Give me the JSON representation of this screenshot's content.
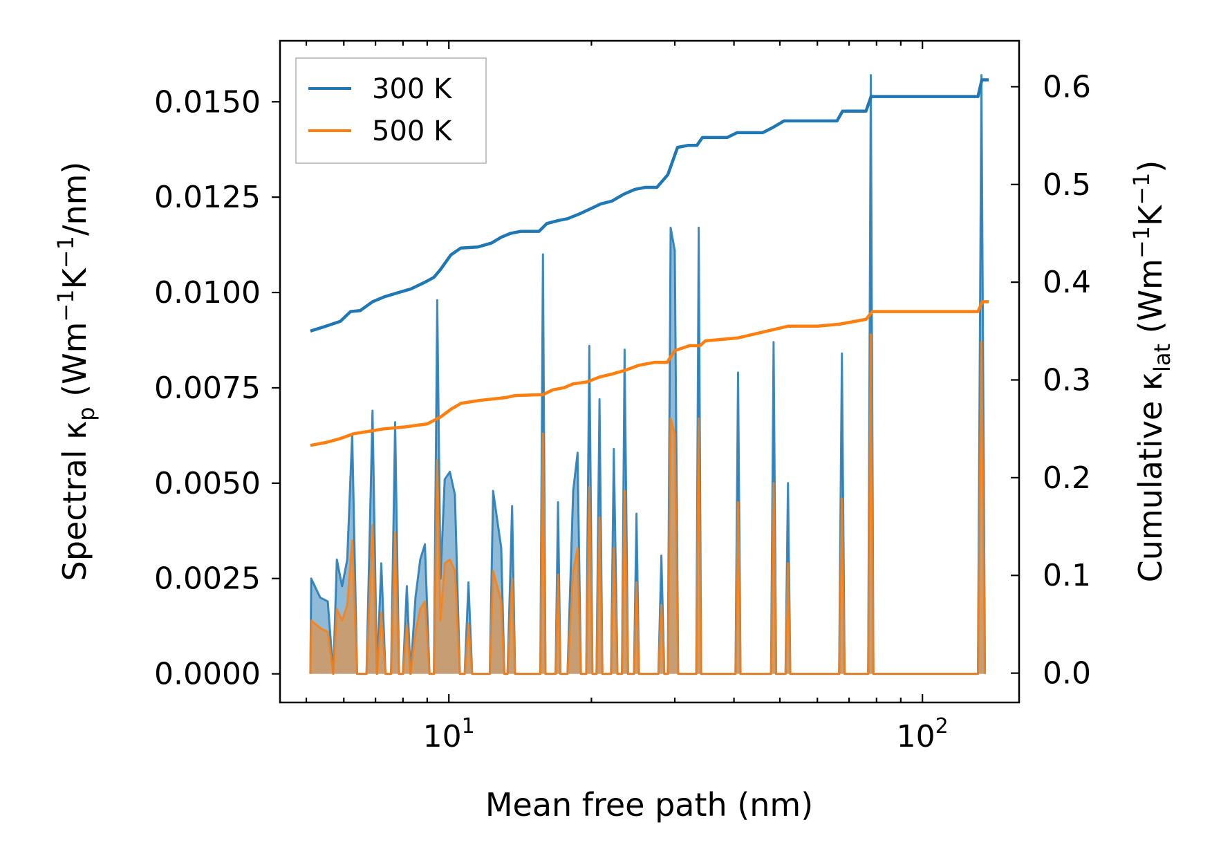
{
  "chart_data": {
    "type": "line",
    "xscale": "log",
    "xlabel": "Mean free path (nm)",
    "ylabel_left": {
      "pre": "Spectral κ",
      "sub": "p",
      "post": " (Wm",
      "sup1": "−1",
      "mid": "K",
      "sup2": "−1",
      "tail": "/nm)"
    },
    "ylabel_right": {
      "pre": "Cumulative κ",
      "sub": "lat",
      "post": " (Wm",
      "sup1": "−1",
      "mid": "K",
      "sup2": "−1",
      "tail": ")"
    },
    "xlim": [
      4.4,
      160
    ],
    "ylim_left": [
      -0.00075,
      0.0166
    ],
    "ylim_right": [
      -0.03,
      0.647
    ],
    "xticks": [
      {
        "value": 10,
        "base": "10",
        "exp": "1"
      },
      {
        "value": 100,
        "base": "10",
        "exp": "2"
      }
    ],
    "yticks_left": [
      {
        "value": 0.0,
        "label": "0.0000"
      },
      {
        "value": 0.0025,
        "label": "0.0025"
      },
      {
        "value": 0.005,
        "label": "0.0050"
      },
      {
        "value": 0.0075,
        "label": "0.0075"
      },
      {
        "value": 0.01,
        "label": "0.0100"
      },
      {
        "value": 0.0125,
        "label": "0.0125"
      },
      {
        "value": 0.015,
        "label": "0.0150"
      }
    ],
    "yticks_right": [
      {
        "value": 0.0,
        "label": "0.0"
      },
      {
        "value": 0.1,
        "label": "0.1"
      },
      {
        "value": 0.2,
        "label": "0.2"
      },
      {
        "value": 0.3,
        "label": "0.3"
      },
      {
        "value": 0.4,
        "label": "0.4"
      },
      {
        "value": 0.5,
        "label": "0.5"
      },
      {
        "value": 0.6,
        "label": "0.6"
      }
    ],
    "legend": {
      "position": "top-left",
      "entries": [
        "300 K",
        "500 K"
      ]
    },
    "colors": {
      "300 K": "#1f77b4",
      "500 K": "#ff7f0e"
    },
    "spectral_series": [
      {
        "name": "300 K",
        "axis": "left",
        "points": [
          [
            5.1,
            0.0
          ],
          [
            5.12,
            0.0025
          ],
          [
            5.35,
            0.002
          ],
          [
            5.55,
            0.0019
          ],
          [
            5.7,
            0.0
          ],
          [
            5.8,
            0.003
          ],
          [
            5.95,
            0.0023
          ],
          [
            6.1,
            0.003
          ],
          [
            6.25,
            0.0063
          ],
          [
            6.4,
            0.0
          ],
          [
            6.7,
            0.0
          ],
          [
            6.9,
            0.0069
          ],
          [
            7.05,
            0.0
          ],
          [
            7.2,
            0.0029
          ],
          [
            7.35,
            0.0
          ],
          [
            7.55,
            0.0
          ],
          [
            7.7,
            0.0066
          ],
          [
            7.85,
            0.0
          ],
          [
            8.0,
            0.0
          ],
          [
            8.15,
            0.0023
          ],
          [
            8.3,
            0.0
          ],
          [
            8.5,
            0.002
          ],
          [
            8.7,
            0.003
          ],
          [
            8.9,
            0.0034
          ],
          [
            9.1,
            0.0
          ],
          [
            9.3,
            0.0
          ],
          [
            9.45,
            0.0098
          ],
          [
            9.6,
            0.0025
          ],
          [
            9.8,
            0.0051
          ],
          [
            10.05,
            0.0053
          ],
          [
            10.3,
            0.0047
          ],
          [
            10.55,
            0.0
          ],
          [
            10.8,
            0.0
          ],
          [
            11.0,
            0.0024
          ],
          [
            11.2,
            0.0
          ],
          [
            12.2,
            0.0
          ],
          [
            12.4,
            0.0048
          ],
          [
            12.9,
            0.0033
          ],
          [
            13.1,
            0.0
          ],
          [
            13.3,
            0.0
          ],
          [
            13.6,
            0.0044
          ],
          [
            13.8,
            0.0
          ],
          [
            15.6,
            0.0
          ],
          [
            15.8,
            0.011
          ],
          [
            16.0,
            0.0
          ],
          [
            16.8,
            0.0
          ],
          [
            17.0,
            0.0045
          ],
          [
            17.2,
            0.0
          ],
          [
            17.8,
            0.0
          ],
          [
            18.3,
            0.0048
          ],
          [
            18.7,
            0.0058
          ],
          [
            19.0,
            0.0
          ],
          [
            19.5,
            0.0
          ],
          [
            19.8,
            0.0086
          ],
          [
            20.1,
            0.0
          ],
          [
            20.5,
            0.0
          ],
          [
            20.8,
            0.0072
          ],
          [
            21.1,
            0.0
          ],
          [
            22.0,
            0.0
          ],
          [
            22.3,
            0.0059
          ],
          [
            22.7,
            0.0
          ],
          [
            23.2,
            0.0
          ],
          [
            23.5,
            0.0085
          ],
          [
            23.9,
            0.0
          ],
          [
            24.6,
            0.0
          ],
          [
            24.9,
            0.0042
          ],
          [
            25.2,
            0.0
          ],
          [
            27.7,
            0.0
          ],
          [
            28.1,
            0.0031
          ],
          [
            28.5,
            0.0
          ],
          [
            29.0,
            0.0
          ],
          [
            29.4,
            0.0117
          ],
          [
            30.0,
            0.0111
          ],
          [
            30.5,
            0.0
          ],
          [
            33.3,
            0.0
          ],
          [
            33.7,
            0.0117
          ],
          [
            34.1,
            0.0
          ],
          [
            40.3,
            0.0
          ],
          [
            40.8,
            0.0079
          ],
          [
            41.3,
            0.0
          ],
          [
            47.9,
            0.0
          ],
          [
            48.5,
            0.0087
          ],
          [
            49.1,
            0.0
          ],
          [
            51.4,
            0.0
          ],
          [
            52.0,
            0.005
          ],
          [
            52.6,
            0.0
          ],
          [
            66.7,
            0.0
          ],
          [
            67.6,
            0.0084
          ],
          [
            68.5,
            0.0
          ],
          [
            76.8,
            0.0
          ],
          [
            77.8,
            0.0157
          ],
          [
            78.8,
            0.0
          ],
          [
            131.0,
            0.0
          ],
          [
            133.2,
            0.0157
          ],
          [
            135.5,
            0.0
          ]
        ]
      },
      {
        "name": "500 K",
        "axis": "left",
        "points": [
          [
            5.1,
            0.0
          ],
          [
            5.12,
            0.0014
          ],
          [
            5.35,
            0.0012
          ],
          [
            5.55,
            0.0011
          ],
          [
            5.7,
            0.0
          ],
          [
            5.8,
            0.0017
          ],
          [
            5.95,
            0.0014
          ],
          [
            6.1,
            0.0018
          ],
          [
            6.25,
            0.0035
          ],
          [
            6.4,
            0.0
          ],
          [
            6.7,
            0.0
          ],
          [
            6.9,
            0.0039
          ],
          [
            7.05,
            0.0
          ],
          [
            7.2,
            0.0016
          ],
          [
            7.35,
            0.0
          ],
          [
            7.55,
            0.0
          ],
          [
            7.7,
            0.0037
          ],
          [
            7.85,
            0.0
          ],
          [
            8.0,
            0.0
          ],
          [
            8.15,
            0.0013
          ],
          [
            8.3,
            0.0
          ],
          [
            8.5,
            0.0011
          ],
          [
            8.7,
            0.0017
          ],
          [
            8.9,
            0.0019
          ],
          [
            9.1,
            0.0
          ],
          [
            9.3,
            0.0
          ],
          [
            9.45,
            0.0056
          ],
          [
            9.6,
            0.0014
          ],
          [
            9.8,
            0.0029
          ],
          [
            10.05,
            0.003
          ],
          [
            10.3,
            0.0027
          ],
          [
            10.55,
            0.0
          ],
          [
            10.8,
            0.0
          ],
          [
            11.0,
            0.0013
          ],
          [
            11.2,
            0.0
          ],
          [
            12.2,
            0.0
          ],
          [
            12.4,
            0.0027
          ],
          [
            12.9,
            0.0019
          ],
          [
            13.1,
            0.0
          ],
          [
            13.3,
            0.0
          ],
          [
            13.6,
            0.0025
          ],
          [
            13.8,
            0.0
          ],
          [
            15.6,
            0.0
          ],
          [
            15.8,
            0.0063
          ],
          [
            16.0,
            0.0
          ],
          [
            16.8,
            0.0
          ],
          [
            17.0,
            0.0026
          ],
          [
            17.2,
            0.0
          ],
          [
            17.8,
            0.0
          ],
          [
            18.3,
            0.0027
          ],
          [
            18.7,
            0.0033
          ],
          [
            19.0,
            0.0
          ],
          [
            19.5,
            0.0
          ],
          [
            19.8,
            0.0049
          ],
          [
            20.1,
            0.0
          ],
          [
            20.5,
            0.0
          ],
          [
            20.8,
            0.0041
          ],
          [
            21.1,
            0.0
          ],
          [
            22.0,
            0.0
          ],
          [
            22.3,
            0.0033
          ],
          [
            22.7,
            0.0
          ],
          [
            23.2,
            0.0
          ],
          [
            23.5,
            0.0048
          ],
          [
            23.9,
            0.0
          ],
          [
            24.6,
            0.0
          ],
          [
            24.9,
            0.0024
          ],
          [
            25.2,
            0.0
          ],
          [
            27.7,
            0.0
          ],
          [
            28.1,
            0.0018
          ],
          [
            28.5,
            0.0
          ],
          [
            29.0,
            0.0
          ],
          [
            29.4,
            0.0067
          ],
          [
            30.0,
            0.0063
          ],
          [
            30.5,
            0.0
          ],
          [
            33.3,
            0.0
          ],
          [
            33.7,
            0.0067
          ],
          [
            34.1,
            0.0
          ],
          [
            40.3,
            0.0
          ],
          [
            40.8,
            0.0045
          ],
          [
            41.3,
            0.0
          ],
          [
            47.9,
            0.0
          ],
          [
            48.5,
            0.005
          ],
          [
            49.1,
            0.0
          ],
          [
            51.4,
            0.0
          ],
          [
            52.0,
            0.0029
          ],
          [
            52.6,
            0.0
          ],
          [
            66.7,
            0.0
          ],
          [
            67.6,
            0.0046
          ],
          [
            68.5,
            0.0
          ],
          [
            76.8,
            0.0
          ],
          [
            77.8,
            0.0089
          ],
          [
            78.8,
            0.0
          ],
          [
            131.0,
            0.0
          ],
          [
            133.2,
            0.0087
          ],
          [
            135.5,
            0.0
          ]
        ]
      }
    ],
    "cumulative_series": [
      {
        "name": "300 K",
        "axis": "right",
        "points": [
          [
            5.1,
            0.35
          ],
          [
            5.5,
            0.355
          ],
          [
            5.9,
            0.36
          ],
          [
            6.2,
            0.37
          ],
          [
            6.5,
            0.371
          ],
          [
            6.9,
            0.38
          ],
          [
            7.3,
            0.385
          ],
          [
            7.9,
            0.39
          ],
          [
            8.3,
            0.393
          ],
          [
            8.9,
            0.4
          ],
          [
            9.3,
            0.405
          ],
          [
            9.6,
            0.413
          ],
          [
            10.1,
            0.428
          ],
          [
            10.6,
            0.435
          ],
          [
            11.5,
            0.436
          ],
          [
            12.3,
            0.44
          ],
          [
            12.9,
            0.446
          ],
          [
            13.5,
            0.45
          ],
          [
            14.2,
            0.452
          ],
          [
            15.5,
            0.452
          ],
          [
            16.1,
            0.46
          ],
          [
            17.0,
            0.463
          ],
          [
            17.8,
            0.465
          ],
          [
            18.9,
            0.47
          ],
          [
            19.9,
            0.475
          ],
          [
            20.9,
            0.48
          ],
          [
            22.1,
            0.483
          ],
          [
            23.4,
            0.49
          ],
          [
            24.7,
            0.495
          ],
          [
            26.0,
            0.497
          ],
          [
            27.5,
            0.497
          ],
          [
            29.0,
            0.51
          ],
          [
            30.4,
            0.538
          ],
          [
            32.0,
            0.54
          ],
          [
            33.4,
            0.54
          ],
          [
            34.3,
            0.548
          ],
          [
            38.7,
            0.548
          ],
          [
            40.6,
            0.553
          ],
          [
            46.0,
            0.553
          ],
          [
            48.2,
            0.558
          ],
          [
            51.0,
            0.565
          ],
          [
            60.0,
            0.565
          ],
          [
            66.0,
            0.565
          ],
          [
            67.8,
            0.575
          ],
          [
            76.0,
            0.575
          ],
          [
            77.9,
            0.59
          ],
          [
            110.0,
            0.59
          ],
          [
            131.0,
            0.59
          ],
          [
            133.5,
            0.607
          ],
          [
            138.0,
            0.607
          ]
        ]
      },
      {
        "name": "500 K",
        "axis": "right",
        "points": [
          [
            5.1,
            0.233
          ],
          [
            5.5,
            0.236
          ],
          [
            5.9,
            0.24
          ],
          [
            6.3,
            0.245
          ],
          [
            6.9,
            0.248
          ],
          [
            7.3,
            0.25
          ],
          [
            8.1,
            0.252
          ],
          [
            9.0,
            0.255
          ],
          [
            9.6,
            0.262
          ],
          [
            10.1,
            0.27
          ],
          [
            10.6,
            0.276
          ],
          [
            11.6,
            0.279
          ],
          [
            13.2,
            0.282
          ],
          [
            13.8,
            0.284
          ],
          [
            15.8,
            0.285
          ],
          [
            16.6,
            0.29
          ],
          [
            17.5,
            0.292
          ],
          [
            18.3,
            0.296
          ],
          [
            19.6,
            0.298
          ],
          [
            20.8,
            0.303
          ],
          [
            22.1,
            0.306
          ],
          [
            23.6,
            0.31
          ],
          [
            25.2,
            0.315
          ],
          [
            27.2,
            0.318
          ],
          [
            28.9,
            0.318
          ],
          [
            30.0,
            0.33
          ],
          [
            32.2,
            0.335
          ],
          [
            33.9,
            0.335
          ],
          [
            34.8,
            0.34
          ],
          [
            40.8,
            0.343
          ],
          [
            47.0,
            0.35
          ],
          [
            52.0,
            0.355
          ],
          [
            60.0,
            0.355
          ],
          [
            66.8,
            0.357
          ],
          [
            76.0,
            0.362
          ],
          [
            78.4,
            0.37
          ],
          [
            110.0,
            0.37
          ],
          [
            131.0,
            0.37
          ],
          [
            133.8,
            0.38
          ],
          [
            138.0,
            0.38
          ]
        ]
      }
    ]
  }
}
